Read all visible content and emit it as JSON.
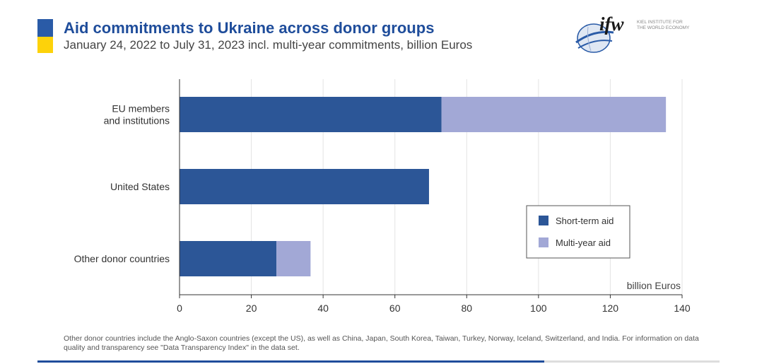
{
  "header": {
    "title": "Aid commitments to Ukraine across donor groups",
    "subtitle": "January 24, 2022 to July 31, 2023 incl. multi-year commitments, billion Euros"
  },
  "logo": {
    "mark": "ifw",
    "line1": "KIEL INSTITUTE FOR",
    "line2": "THE WORLD ECONOMY"
  },
  "colors": {
    "short_term": "#2c5697",
    "multi_year": "#a2a8d6",
    "title": "#1f4d9b",
    "flag_blue": "#2a5ba7",
    "flag_yellow": "#fdd20a"
  },
  "chart_data": {
    "type": "bar",
    "orientation": "horizontal",
    "stacked": true,
    "categories": [
      [
        "EU members",
        "and institutions"
      ],
      [
        "United States"
      ],
      [
        "Other donor countries"
      ]
    ],
    "series": [
      {
        "name": "Short-term aid",
        "values": [
          73,
          69.5,
          27
        ]
      },
      {
        "name": "Multi-year aid",
        "values": [
          62.5,
          0,
          9.5
        ]
      }
    ],
    "xlabel": "billion Euros",
    "xlim": [
      0,
      140
    ],
    "xticks": [
      0,
      20,
      40,
      60,
      80,
      100,
      120,
      140
    ],
    "grid": "vertical",
    "legend_position": "lower-right"
  },
  "footnote": "Other donor countries include the Anglo-Saxon countries (except the US), as well as China, Japan, South Korea, Taiwan, Turkey, Norway, Iceland, Switzerland, and India. For information on data quality and transparency see \"Data Transparency Index\" in the data set."
}
